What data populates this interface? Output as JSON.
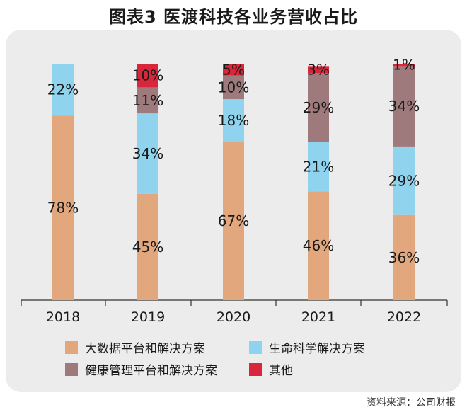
{
  "title": "图表3  医渡科技各业务营收占比",
  "source": "资料来源：公司财报",
  "colors": {
    "big_data": "#e2a77d",
    "life_science": "#8fd3ee",
    "health_mgmt": "#9e7a7c",
    "other": "#d8263a"
  },
  "chart_data": {
    "type": "bar",
    "stacked": true,
    "categories": [
      "2018",
      "2019",
      "2020",
      "2021",
      "2022"
    ],
    "ylim": [
      0,
      100
    ],
    "legend_position": "bottom",
    "series": [
      {
        "key": "big_data",
        "name": "大数据平台和解决方案",
        "values": [
          78,
          45,
          67,
          46,
          36
        ],
        "labels": [
          "78%",
          "45%",
          "67%",
          "46%",
          "36%"
        ]
      },
      {
        "key": "life_science",
        "name": "生命科学解决方案",
        "values": [
          22,
          34,
          18,
          21,
          29
        ],
        "labels": [
          "22%",
          "34%",
          "18%",
          "21%",
          "29%"
        ]
      },
      {
        "key": "health_mgmt",
        "name": "健康管理平台和解决方案",
        "values": [
          0,
          11,
          10,
          29,
          34
        ],
        "labels": [
          "",
          "11%",
          "10%",
          "29%",
          "34%"
        ]
      },
      {
        "key": "other",
        "name": "其他",
        "values": [
          0,
          10,
          5,
          3,
          1
        ],
        "labels": [
          "",
          "10%",
          "5%",
          "3%",
          "1%"
        ]
      }
    ]
  },
  "legend_order": [
    "big_data",
    "life_science",
    "health_mgmt",
    "other"
  ]
}
